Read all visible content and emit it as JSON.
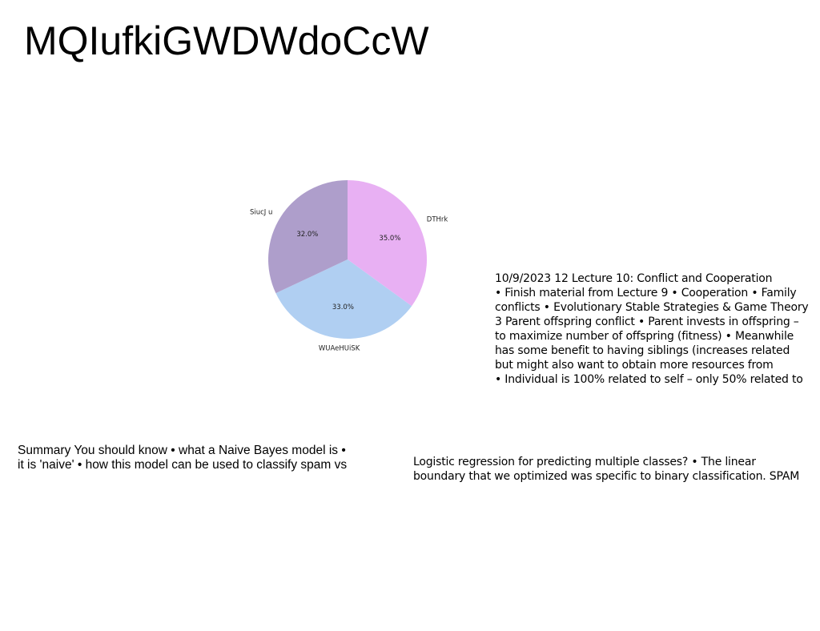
{
  "page": {
    "title": "MQIufkiGWDWdoCcW"
  },
  "chart_data": {
    "type": "pie",
    "categories": [
      "DTHrk",
      "WUAeHUiSK",
      "SiucJ u"
    ],
    "values": [
      35.0,
      33.0,
      32.0
    ],
    "value_labels": [
      "35.0%",
      "33.0%",
      "32.0%"
    ],
    "colors": [
      "#e8b0f3",
      "#b0cff2",
      "#ae9ecb"
    ],
    "start_angle_deg": 90,
    "direction": "clockwise",
    "title": "",
    "legend": "none"
  },
  "text_blocks": {
    "lecture": {
      "lines": [
        "10/9/2023 12 Lecture 10: Conflict and Cooperation",
        "• Finish material from Lecture 9 • Cooperation • Family",
        "conflicts • Evolutionary Stable Strategies & Game Theory",
        "3 Parent offspring conflict • Parent invests in offspring –",
        "to maximize number of offspring (fitness) • Meanwhile",
        "has some benefit to having siblings (increases related",
        "but might also want to obtain more resources from",
        "• Individual is 100% related to self – only 50% related to"
      ]
    },
    "summary": {
      "lines": [
        "Summary You should know • what a Naive Bayes model is •",
        "it is 'naive' • how this model can be used to classify spam vs"
      ]
    },
    "logistic": {
      "lines": [
        "Logistic regression for predicting multiple classes? • The linear",
        "boundary that we optimized was specific to binary classification. SPAM"
      ]
    }
  }
}
